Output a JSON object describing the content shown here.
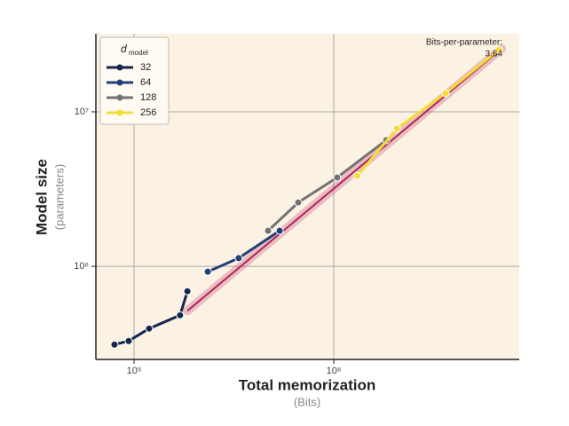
{
  "chart_data": {
    "type": "line",
    "xlabel": "Total memorization",
    "xlabel_sub": "(Bits)",
    "ylabel": "Model size",
    "ylabel_sub": "(parameters)",
    "xscale": "log",
    "yscale": "log",
    "xlim": [
      64400,
      8490000
    ],
    "ylim": [
      250000,
      32000000
    ],
    "xticks": [
      {
        "value": 100000,
        "label": "10⁵"
      },
      {
        "value": 1000000,
        "label": "10⁶"
      }
    ],
    "yticks": [
      {
        "value": 1000000,
        "label": "10⁶"
      },
      {
        "value": 10000000,
        "label": "10⁷"
      }
    ],
    "grid": true,
    "legend_title": "d",
    "legend_title_sub": "model",
    "legend_position": "upper left",
    "annotation": "Bits-per-parameter:",
    "annotation_value": "3.64",
    "fit_line": {
      "color": "#b3245c",
      "x": [
        185000,
        6920000
      ],
      "y": [
        516000,
        25600000
      ]
    },
    "series": [
      {
        "name": "32",
        "color": "#17264f",
        "x": [
          79800,
          94000,
          119000,
          170000,
          185000
        ],
        "y": [
          312000,
          329000,
          396000,
          483000,
          690000
        ]
      },
      {
        "name": "64",
        "color": "#223f78",
        "x": [
          234000,
          334000,
          536000
        ],
        "y": [
          924000,
          1130000,
          1700000
        ]
      },
      {
        "name": "128",
        "color": "#737373",
        "x": [
          469000,
          664000,
          1040000,
          1830000
        ],
        "y": [
          1700000,
          2590000,
          3760000,
          6550000
        ]
      },
      {
        "name": "256",
        "color": "#f2dd35",
        "x": [
          1310000,
          2070000,
          3630000,
          6710000
        ],
        "y": [
          3850000,
          7780000,
          13200000,
          25200000
        ]
      }
    ]
  }
}
